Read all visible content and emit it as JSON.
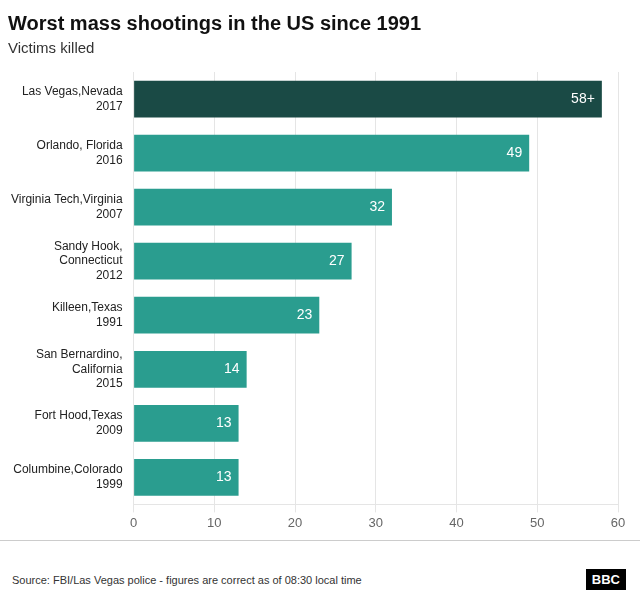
{
  "chart_data": {
    "type": "bar",
    "orientation": "horizontal",
    "title": "Worst mass shootings in the US since 1991",
    "subtitle": "Victims killed",
    "source": "Source: FBI/Las Vegas police - figures are correct as of 08:30 local time",
    "annotations": [
      "BBC"
    ],
    "categories": [
      [
        "Las Vegas,Nevada",
        "2017"
      ],
      [
        "Orlando, Florida",
        "2016"
      ],
      [
        "Virginia Tech,Virginia",
        "2007"
      ],
      [
        "Sandy Hook,",
        "Connecticut",
        "2012"
      ],
      [
        "Killeen,Texas",
        "1991"
      ],
      [
        "San Bernardino,",
        "California",
        "2015"
      ],
      [
        "Fort Hood,Texas",
        "2009"
      ],
      [
        "Columbine,Colorado",
        "1999"
      ]
    ],
    "values": [
      58,
      49,
      32,
      27,
      23,
      14,
      13,
      13
    ],
    "value_labels": [
      "58+",
      "49",
      "32",
      "27",
      "23",
      "14",
      "13",
      "13"
    ],
    "data_labels": true,
    "colors": [
      "#1a4a45",
      "#2a9d8f",
      "#2a9d8f",
      "#2a9d8f",
      "#2a9d8f",
      "#2a9d8f",
      "#2a9d8f",
      "#2a9d8f"
    ],
    "xlim": [
      0,
      60
    ],
    "xticks": [
      0,
      10,
      20,
      30,
      40,
      50,
      60
    ],
    "grid": true
  }
}
